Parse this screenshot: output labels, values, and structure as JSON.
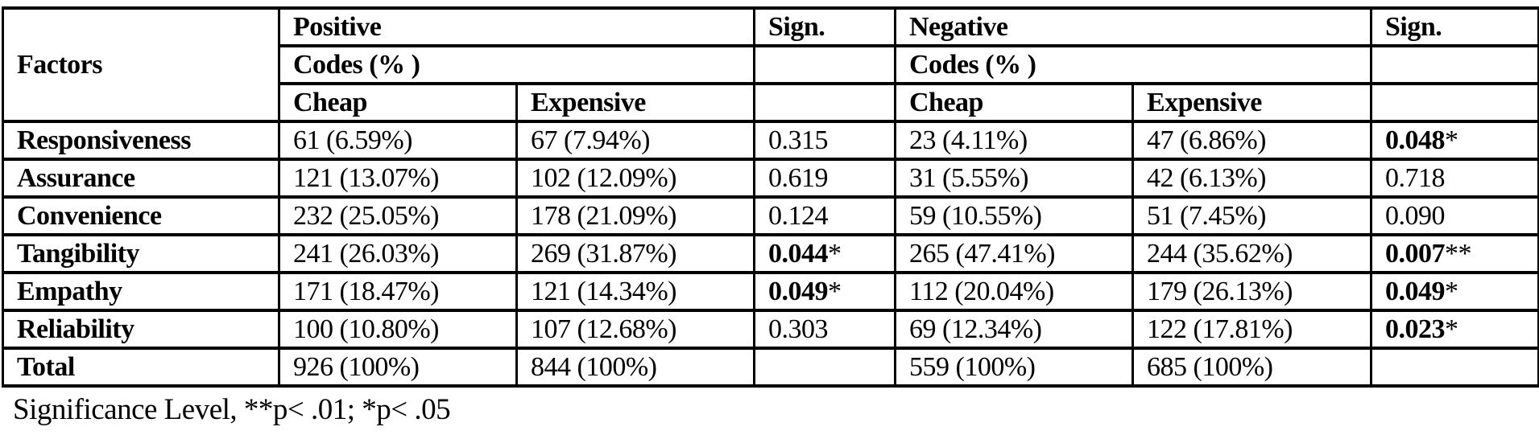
{
  "page": {
    "footer_note": "Significance Level, **p< .01; *p< .05"
  },
  "table": {
    "header": {
      "factors": "Factors",
      "positive": "Positive",
      "negative": "Negative",
      "sign": "Sign.",
      "codes_pct": "Codes (% )",
      "cheap": "Cheap",
      "expensive": "Expensive"
    },
    "rows": [
      {
        "factor": "Responsiveness",
        "positive": {
          "cheap": "61 (6.59%)",
          "expensive": "67 (7.94%)",
          "sign": {
            "value": "0.315",
            "stars": "",
            "bold": false
          }
        },
        "negative": {
          "cheap": "23 (4.11%)",
          "expensive": "47 (6.86%)",
          "sign": {
            "value": "0.048",
            "stars": "*",
            "bold": true
          }
        }
      },
      {
        "factor": "Assurance",
        "positive": {
          "cheap": "121 (13.07%)",
          "expensive": "102 (12.09%)",
          "sign": {
            "value": "0.619",
            "stars": "",
            "bold": false
          }
        },
        "negative": {
          "cheap": "31 (5.55%)",
          "expensive": "42 (6.13%)",
          "sign": {
            "value": "0.718",
            "stars": "",
            "bold": false
          }
        }
      },
      {
        "factor": "Convenience",
        "positive": {
          "cheap": "232 (25.05%)",
          "expensive": "178 (21.09%)",
          "sign": {
            "value": "0.124",
            "stars": "",
            "bold": false
          }
        },
        "negative": {
          "cheap": "59 (10.55%)",
          "expensive": "51 (7.45%)",
          "sign": {
            "value": "0.090",
            "stars": "",
            "bold": false
          }
        }
      },
      {
        "factor": "Tangibility",
        "positive": {
          "cheap": "241 (26.03%)",
          "expensive": "269 (31.87%)",
          "sign": {
            "value": "0.044",
            "stars": "*",
            "bold": true
          }
        },
        "negative": {
          "cheap": "265 (47.41%)",
          "expensive": "244 (35.62%)",
          "sign": {
            "value": "0.007",
            "stars": "**",
            "bold": true
          }
        }
      },
      {
        "factor": "Empathy",
        "positive": {
          "cheap": "171 (18.47%)",
          "expensive": "121 (14.34%)",
          "sign": {
            "value": "0.049",
            "stars": "*",
            "bold": true
          }
        },
        "negative": {
          "cheap": "112 (20.04%)",
          "expensive": "179 (26.13%)",
          "sign": {
            "value": "0.049",
            "stars": "*",
            "bold": true
          }
        }
      },
      {
        "factor": "Reliability",
        "positive": {
          "cheap": "100 (10.80%)",
          "expensive": "107 (12.68%)",
          "sign": {
            "value": "0.303",
            "stars": "",
            "bold": false
          }
        },
        "negative": {
          "cheap": "69 (12.34%)",
          "expensive": "122 (17.81%)",
          "sign": {
            "value": "0.023",
            "stars": "*",
            "bold": true
          }
        }
      },
      {
        "factor": "Total",
        "positive": {
          "cheap": "926 (100%)",
          "expensive": "844 (100%)",
          "sign": {
            "value": "",
            "stars": "",
            "bold": false
          }
        },
        "negative": {
          "cheap": "559 (100%)",
          "expensive": "685 (100%)",
          "sign": {
            "value": "",
            "stars": "",
            "bold": false
          }
        }
      }
    ]
  },
  "chart_data": {
    "type": "table",
    "columns": [
      "Factors",
      "Positive Codes (%) Cheap",
      "Positive Codes (%) Expensive",
      "Sign.",
      "Negative Codes (%) Cheap",
      "Negative Codes (%) Expensive",
      "Sign."
    ],
    "rows": [
      [
        "Responsiveness",
        "61 (6.59%)",
        "67 (7.94%)",
        "0.315",
        "23 (4.11%)",
        "47 (6.86%)",
        "0.048*"
      ],
      [
        "Assurance",
        "121 (13.07%)",
        "102 (12.09%)",
        "0.619",
        "31 (5.55%)",
        "42 (6.13%)",
        "0.718"
      ],
      [
        "Convenience",
        "232 (25.05%)",
        "178 (21.09%)",
        "0.124",
        "59 (10.55%)",
        "51 (7.45%)",
        "0.090"
      ],
      [
        "Tangibility",
        "241 (26.03%)",
        "269 (31.87%)",
        "0.044*",
        "265 (47.41%)",
        "244 (35.62%)",
        "0.007**"
      ],
      [
        "Empathy",
        "171 (18.47%)",
        "121 (14.34%)",
        "0.049*",
        "112 (20.04%)",
        "179 (26.13%)",
        "0.049*"
      ],
      [
        "Reliability",
        "100 (10.80%)",
        "107 (12.68%)",
        "0.303",
        "69 (12.34%)",
        "122 (17.81%)",
        "0.023*"
      ],
      [
        "Total",
        "926 (100%)",
        "844 (100%)",
        "",
        "559 (100%)",
        "685 (100%)",
        ""
      ]
    ],
    "footnote": "Significance Level, **p< .01; *p< .05"
  }
}
